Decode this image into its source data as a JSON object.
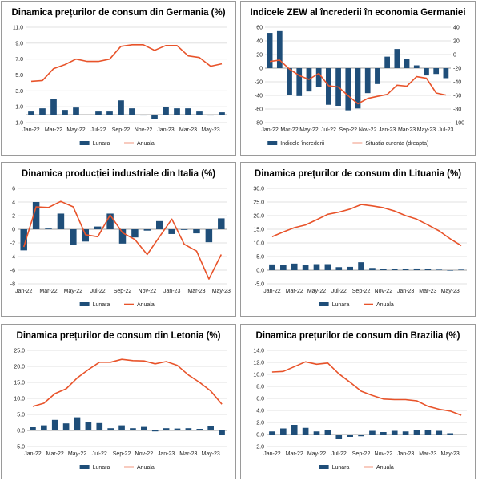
{
  "chart_data": [
    {
      "type": "bar",
      "title": "Dinamica prețurilor de consum din Germania (%)",
      "categories": [
        "Jan-22",
        "Feb-22",
        "Mar-22",
        "Apr-22",
        "May-22",
        "Jun-22",
        "Jul-22",
        "Aug-22",
        "Sep-22",
        "Oct-22",
        "Nov-22",
        "Dec-22",
        "Jan-23",
        "Feb-23",
        "Mar-23",
        "Apr-23",
        "May-23",
        "Jun-23"
      ],
      "xticks": [
        "Jan-22",
        "Mar-22",
        "May-22",
        "Jul-22",
        "Sep-22",
        "Nov-22",
        "Jan-23",
        "Mar-23",
        "May-23"
      ],
      "ylim": [
        -1,
        11
      ],
      "yticks": [
        -1.0,
        1.0,
        3.0,
        5.0,
        7.0,
        9.0,
        11.0
      ],
      "ytick_labels": [
        "-1.0",
        "1.0",
        "3.0",
        "5.0",
        "7.0",
        "9.0",
        "11.0"
      ],
      "series": [
        {
          "name": "Lunara",
          "kind": "bar",
          "color": "#1f4e79",
          "values": [
            0.4,
            0.8,
            2.0,
            0.6,
            0.9,
            0.0,
            0.4,
            0.4,
            1.8,
            0.8,
            -0.1,
            -0.5,
            1.0,
            0.8,
            0.8,
            0.4,
            -0.1,
            0.3
          ]
        },
        {
          "name": "Anuala",
          "kind": "line",
          "color": "#e8532a",
          "values": [
            4.2,
            4.3,
            5.8,
            6.3,
            7.0,
            6.7,
            6.7,
            7.0,
            8.6,
            8.8,
            8.8,
            8.1,
            8.7,
            8.7,
            7.4,
            7.2,
            6.1,
            6.4
          ]
        }
      ]
    },
    {
      "type": "bar",
      "title": "Indicele ZEW al încrederii în economia Germaniei",
      "categories": [
        "Jan-22",
        "Feb-22",
        "Mar-22",
        "Apr-22",
        "May-22",
        "Jun-22",
        "Jul-22",
        "Aug-22",
        "Sep-22",
        "Oct-22",
        "Nov-22",
        "Dec-22",
        "Jan-23",
        "Feb-23",
        "Mar-23",
        "Apr-23",
        "May-23",
        "Jun-23",
        "Jul-23"
      ],
      "xticks": [
        "Jan-22",
        "Mar-22",
        "May-22",
        "Jul-22",
        "Sep-22",
        "Nov-22",
        "Jan-23",
        "Mar-23",
        "May-23",
        "Jul-23"
      ],
      "ylim": [
        -80,
        60
      ],
      "yticks": [
        -80,
        -60,
        -40,
        -20,
        0,
        20,
        40,
        60
      ],
      "ytick_labels": [
        "-80",
        "-60",
        "-40",
        "-20",
        "0",
        "20",
        "40",
        "60"
      ],
      "y2lim": [
        -100,
        40
      ],
      "y2ticks": [
        -100,
        -80,
        -60,
        -40,
        -20,
        0,
        20,
        40
      ],
      "y2tick_labels": [
        "-100",
        "-80",
        "-60",
        "-40",
        "-20",
        "0",
        "20",
        "40"
      ],
      "series": [
        {
          "name": "Indicele încrederii",
          "kind": "bar",
          "axis": "left",
          "color": "#1f4e79",
          "values": [
            51.7,
            54.3,
            -39.3,
            -41.0,
            -34.3,
            -28.0,
            -53.8,
            -55.3,
            -61.9,
            -59.2,
            -36.7,
            -23.3,
            16.9,
            28.1,
            13.0,
            4.1,
            -10.7,
            -8.5,
            -14.7
          ]
        },
        {
          "name": "Situatia curenta (dreapta)",
          "kind": "line",
          "axis": "right",
          "color": "#e8532a",
          "values": [
            -10.2,
            -8.1,
            -21.4,
            -30.8,
            -36.5,
            -27.6,
            -45.8,
            -47.6,
            -60.5,
            -72.2,
            -64.5,
            -61.4,
            -58.6,
            -45.1,
            -46.5,
            -32.5,
            -34.8,
            -56.5,
            -59.5
          ]
        }
      ]
    },
    {
      "type": "bar",
      "title": "Dinamica producției industriale din Italia (%)",
      "categories": [
        "Jan-22",
        "Feb-22",
        "Mar-22",
        "Apr-22",
        "May-22",
        "Jun-22",
        "Jul-22",
        "Aug-22",
        "Sep-22",
        "Oct-22",
        "Nov-22",
        "Dec-22",
        "Jan-23",
        "Feb-23",
        "Mar-23",
        "Apr-23",
        "May-23"
      ],
      "xticks": [
        "Jan-22",
        "Mar-22",
        "May-22",
        "Jul-22",
        "Sep-22",
        "Nov-22",
        "Jan-23",
        "Mar-23",
        "May-23"
      ],
      "ylim": [
        -8,
        6
      ],
      "yticks": [
        -8,
        -6,
        -4,
        -2,
        0,
        2,
        4,
        6
      ],
      "ytick_labels": [
        "-8",
        "-6",
        "-4",
        "-2",
        "0",
        "2",
        "4",
        "6"
      ],
      "series": [
        {
          "name": "Lunara",
          "kind": "bar",
          "color": "#1f4e79",
          "values": [
            -3.1,
            4.0,
            0.1,
            2.3,
            -2.3,
            -1.8,
            0.4,
            2.3,
            -2.1,
            -1.2,
            -0.2,
            1.2,
            -0.7,
            -0.1,
            -0.6,
            -1.9,
            1.6
          ]
        },
        {
          "name": "Anuala",
          "kind": "line",
          "color": "#e8532a",
          "values": [
            -2.6,
            3.3,
            3.2,
            4.1,
            3.3,
            -0.8,
            -1.1,
            2.1,
            -0.5,
            -1.5,
            -3.7,
            -1.1,
            1.5,
            -2.2,
            -3.2,
            -7.3,
            -3.7
          ]
        }
      ]
    },
    {
      "type": "bar",
      "title": "Dinamica prețurilor de consum din Lituania (%)",
      "categories": [
        "Jan-22",
        "Feb-22",
        "Mar-22",
        "Apr-22",
        "May-22",
        "Jun-22",
        "Jul-22",
        "Aug-22",
        "Sep-22",
        "Oct-22",
        "Nov-22",
        "Dec-22",
        "Jan-23",
        "Feb-23",
        "Mar-23",
        "Apr-23",
        "May-23",
        "Jun-23"
      ],
      "xticks": [
        "Jan-22",
        "Mar-22",
        "May-22",
        "Jul-22",
        "Sep-22",
        "Nov-22",
        "Jan-23",
        "Mar-23",
        "May-23"
      ],
      "ylim": [
        -5,
        30
      ],
      "yticks": [
        -5,
        0,
        5,
        10,
        15,
        20,
        25,
        30
      ],
      "ytick_labels": [
        "-5.0",
        "0.0",
        "5.0",
        "10.0",
        "15.0",
        "20.0",
        "25.0",
        "30.0"
      ],
      "series": [
        {
          "name": "Lunara",
          "kind": "bar",
          "color": "#1f4e79",
          "values": [
            2.1,
            1.8,
            2.4,
            1.8,
            2.2,
            2.2,
            1.1,
            1.2,
            2.9,
            0.8,
            0.3,
            0.3,
            0.5,
            0.6,
            0.5,
            0.2,
            -0.1,
            0.2
          ]
        },
        {
          "name": "Anuala",
          "kind": "line",
          "color": "#e8532a",
          "values": [
            12.3,
            14.0,
            15.6,
            16.6,
            18.5,
            20.5,
            21.3,
            22.4,
            24.1,
            23.6,
            22.9,
            21.7,
            20.0,
            18.7,
            16.6,
            14.4,
            11.5,
            9.0
          ]
        }
      ]
    },
    {
      "type": "bar",
      "title": "Dinamica prețurilor de consum din Letonia (%)",
      "categories": [
        "Jan-22",
        "Feb-22",
        "Mar-22",
        "Apr-22",
        "May-22",
        "Jun-22",
        "Jul-22",
        "Aug-22",
        "Sep-22",
        "Oct-22",
        "Nov-22",
        "Dec-22",
        "Jan-23",
        "Feb-23",
        "Mar-23",
        "Apr-23",
        "May-23",
        "Jun-23"
      ],
      "xticks": [
        "Jan-22",
        "Mar-22",
        "May-22",
        "Jul-22",
        "Sep-22",
        "Nov-22",
        "Jan-23",
        "Mar-23",
        "May-23"
      ],
      "ylim": [
        -5,
        25
      ],
      "yticks": [
        -5,
        0,
        5,
        10,
        15,
        20,
        25
      ],
      "ytick_labels": [
        "-5.0",
        "0.0",
        "5.0",
        "10.0",
        "15.0",
        "20.0",
        "25.0"
      ],
      "series": [
        {
          "name": "Lunara",
          "kind": "bar",
          "color": "#1f4e79",
          "values": [
            1.0,
            1.6,
            3.3,
            2.2,
            4.1,
            2.5,
            2.3,
            0.7,
            1.6,
            0.7,
            1.1,
            -0.3,
            0.7,
            0.6,
            0.7,
            0.5,
            1.3,
            -1.3
          ]
        },
        {
          "name": "Anuala",
          "kind": "line",
          "color": "#e8532a",
          "values": [
            7.5,
            8.5,
            11.5,
            13.0,
            16.4,
            19.0,
            21.3,
            21.3,
            22.2,
            21.8,
            21.7,
            20.8,
            21.5,
            20.3,
            17.3,
            15.0,
            12.3,
            8.2
          ]
        }
      ]
    },
    {
      "type": "bar",
      "title": "Dinamica prețurilor de consum din Brazilia (%)",
      "categories": [
        "Jan-22",
        "Feb-22",
        "Mar-22",
        "Apr-22",
        "May-22",
        "Jun-22",
        "Jul-22",
        "Aug-22",
        "Sep-22",
        "Oct-22",
        "Nov-22",
        "Dec-22",
        "Jan-23",
        "Feb-23",
        "Mar-23",
        "Apr-23",
        "May-23",
        "Jun-23"
      ],
      "xticks": [
        "Jan-22",
        "Mar-22",
        "May-22",
        "Jul-22",
        "Sep-22",
        "Nov-22",
        "Jan-23",
        "Mar-23",
        "May-23"
      ],
      "ylim": [
        -2,
        14
      ],
      "yticks": [
        -2,
        0,
        2,
        4,
        6,
        8,
        10,
        12,
        14
      ],
      "ytick_labels": [
        "-2.0",
        "0.0",
        "2.0",
        "4.0",
        "6.0",
        "8.0",
        "10.0",
        "12.0",
        "14.0"
      ],
      "series": [
        {
          "name": "Lunara",
          "kind": "bar",
          "color": "#1f4e79",
          "values": [
            0.5,
            1.0,
            1.6,
            1.1,
            0.5,
            0.7,
            -0.7,
            -0.4,
            -0.3,
            0.6,
            0.4,
            0.6,
            0.5,
            0.8,
            0.7,
            0.6,
            0.2,
            -0.1
          ]
        },
        {
          "name": "Anuala",
          "kind": "line",
          "color": "#e8532a",
          "values": [
            10.4,
            10.5,
            11.3,
            12.1,
            11.7,
            11.9,
            10.1,
            8.7,
            7.2,
            6.5,
            5.9,
            5.8,
            5.8,
            5.6,
            4.7,
            4.2,
            3.9,
            3.2
          ]
        }
      ]
    }
  ]
}
